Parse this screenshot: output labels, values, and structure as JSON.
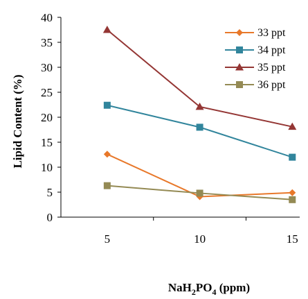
{
  "chart_data": {
    "type": "line",
    "x": [
      5,
      10,
      15
    ],
    "xlabel_main": "NaH",
    "xlabel_sub1": "2",
    "xlabel_mid": "PO",
    "xlabel_sub2": "4",
    "xlabel_unit": " (ppm)",
    "ylabel": "Lipid Content (%)",
    "ylim": [
      0,
      40
    ],
    "yticks": [
      "0",
      "5",
      "10",
      "15",
      "20",
      "25",
      "30",
      "35",
      "40"
    ],
    "xticks": [
      "5",
      "10",
      "15"
    ],
    "grid": false,
    "legend_position": "top-right",
    "series": [
      {
        "name": "33 ppt",
        "values": [
          12.6,
          4.1,
          4.9
        ],
        "color": "#E8782A",
        "marker": "diamond"
      },
      {
        "name": "34 ppt",
        "values": [
          22.4,
          18.0,
          12.0
        ],
        "color": "#31859C",
        "marker": "square"
      },
      {
        "name": "35 ppt",
        "values": [
          37.5,
          22.1,
          18.1
        ],
        "color": "#943634",
        "marker": "triangle"
      },
      {
        "name": "36 ppt",
        "values": [
          6.3,
          4.8,
          3.5
        ],
        "color": "#948A54",
        "marker": "square"
      }
    ]
  }
}
